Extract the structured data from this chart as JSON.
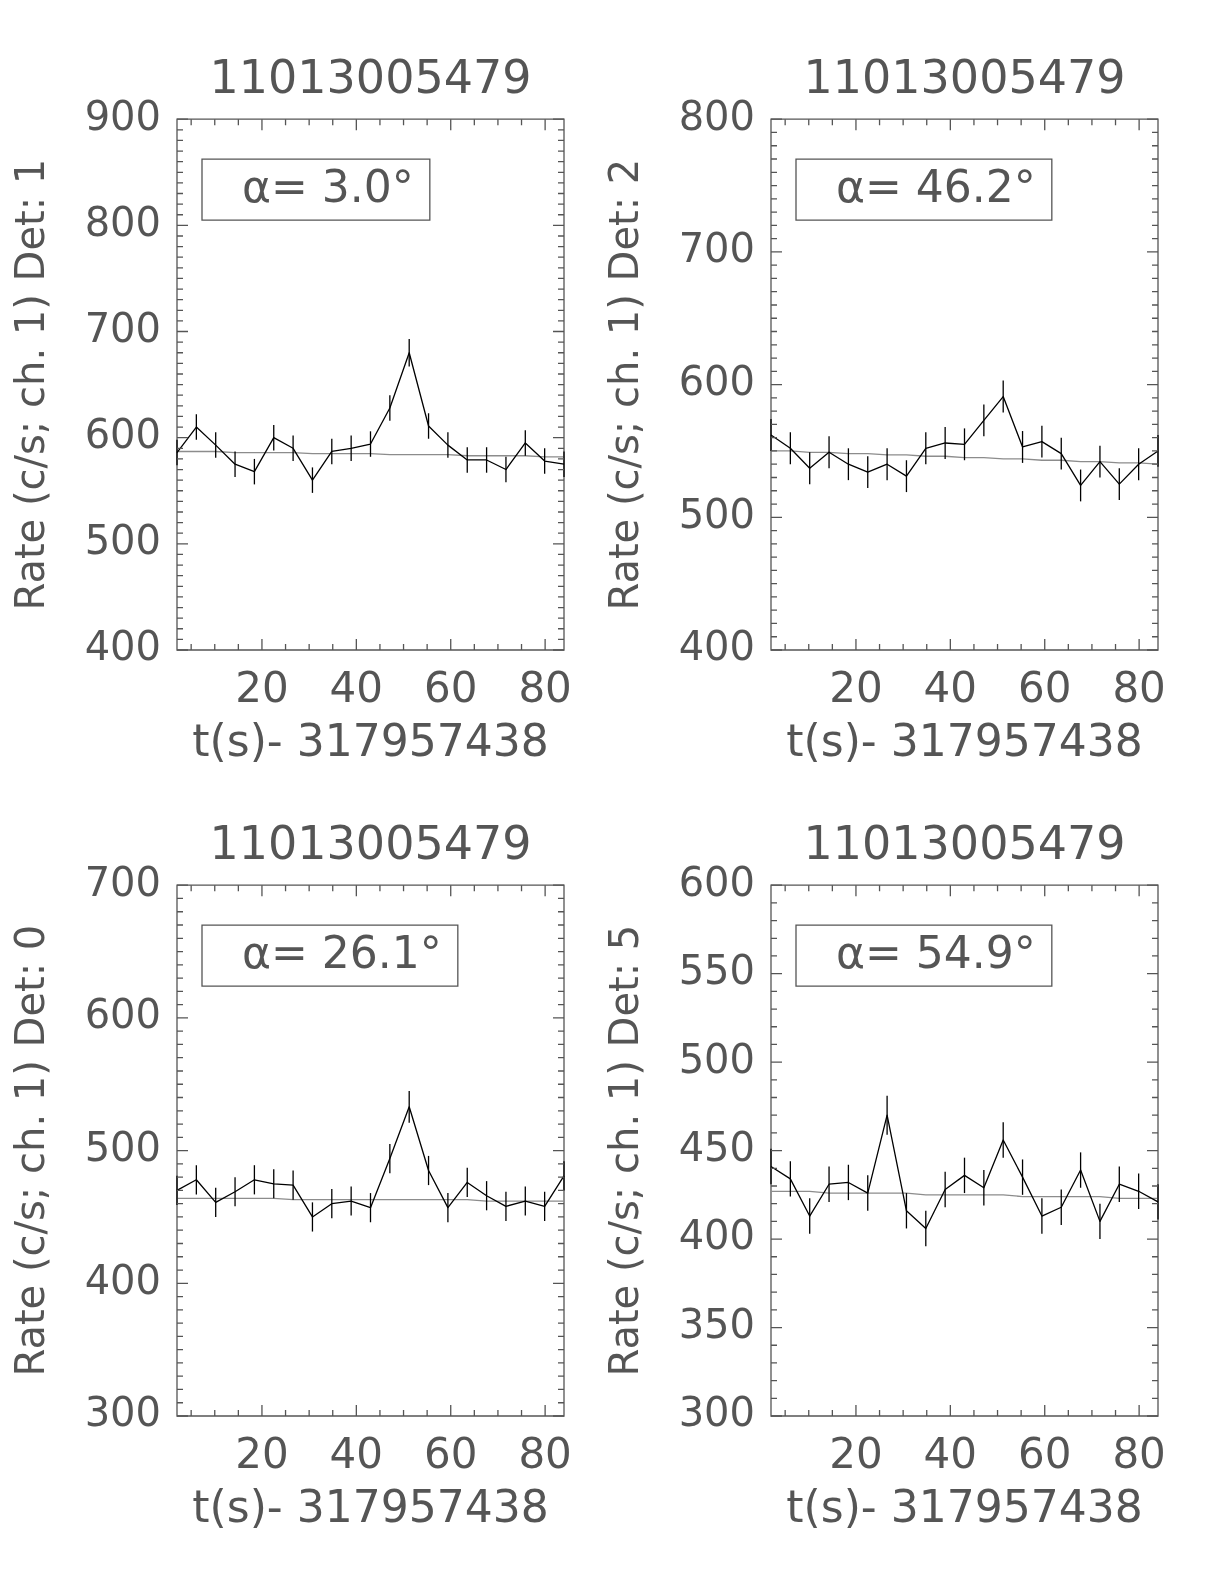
{
  "chart_data": [
    {
      "type": "line",
      "title": "11013005479",
      "xlabel": "t(s)- 317957438",
      "ylabel": "Rate (c/s; ch. 1) Det: 1",
      "annotations": [
        "α= 3.0°"
      ],
      "x": [
        2,
        6.1,
        10.2,
        14.3,
        18.4,
        22.5,
        26.6,
        30.7,
        34.8,
        38.9,
        43,
        47.1,
        51.2,
        55.3,
        59.4,
        63.5,
        67.6,
        71.7,
        75.8,
        79.9,
        84
      ],
      "xlim": [
        2,
        84
      ],
      "xticks": [
        {
          "value": 5,
          "label": null
        },
        {
          "value": 10,
          "label": null
        },
        {
          "value": 15,
          "label": null
        },
        20,
        {
          "value": 25,
          "label": null
        },
        {
          "value": 30,
          "label": null
        },
        {
          "value": 35,
          "label": null
        },
        40,
        {
          "value": 45,
          "label": null
        },
        {
          "value": 50,
          "label": null
        },
        {
          "value": 55,
          "label": null
        },
        60,
        {
          "value": 65,
          "label": null
        },
        {
          "value": 70,
          "label": null
        },
        {
          "value": 75,
          "label": null
        },
        80
      ],
      "ylim": [
        400,
        900
      ],
      "yticks": [
        400,
        {
          "value": 410,
          "label": null
        },
        {
          "value": 420,
          "label": null
        },
        {
          "value": 430,
          "label": null
        },
        {
          "value": 440,
          "label": null
        },
        {
          "value": 450,
          "label": null
        },
        {
          "value": 460,
          "label": null
        },
        {
          "value": 470,
          "label": null
        },
        {
          "value": 480,
          "label": null
        },
        {
          "value": 490,
          "label": null
        },
        500,
        {
          "value": 510,
          "label": null
        },
        {
          "value": 520,
          "label": null
        },
        {
          "value": 530,
          "label": null
        },
        {
          "value": 540,
          "label": null
        },
        {
          "value": 550,
          "label": null
        },
        {
          "value": 560,
          "label": null
        },
        {
          "value": 570,
          "label": null
        },
        {
          "value": 580,
          "label": null
        },
        {
          "value": 590,
          "label": null
        },
        600,
        {
          "value": 610,
          "label": null
        },
        {
          "value": 620,
          "label": null
        },
        {
          "value": 630,
          "label": null
        },
        {
          "value": 640,
          "label": null
        },
        {
          "value": 650,
          "label": null
        },
        {
          "value": 660,
          "label": null
        },
        {
          "value": 670,
          "label": null
        },
        {
          "value": 680,
          "label": null
        },
        {
          "value": 690,
          "label": null
        },
        700,
        {
          "value": 710,
          "label": null
        },
        {
          "value": 720,
          "label": null
        },
        {
          "value": 730,
          "label": null
        },
        {
          "value": 740,
          "label": null
        },
        {
          "value": 750,
          "label": null
        },
        {
          "value": 760,
          "label": null
        },
        {
          "value": 770,
          "label": null
        },
        {
          "value": 780,
          "label": null
        },
        {
          "value": 790,
          "label": null
        },
        800,
        {
          "value": 810,
          "label": null
        },
        {
          "value": 820,
          "label": null
        },
        {
          "value": 830,
          "label": null
        },
        {
          "value": 840,
          "label": null
        },
        {
          "value": 850,
          "label": null
        },
        {
          "value": 860,
          "label": null
        },
        {
          "value": 870,
          "label": null
        },
        {
          "value": 880,
          "label": null
        },
        {
          "value": 890,
          "label": null
        },
        900
      ],
      "series": [
        {
          "color": "#000000",
          "values": [
            586,
            610,
            593,
            575,
            568,
            600,
            590,
            560,
            587,
            590,
            594,
            628,
            680,
            611,
            593,
            579,
            579,
            570,
            595,
            578,
            575
          ],
          "errors": [
            12,
            12,
            12,
            12,
            12,
            12,
            12,
            12,
            12,
            12,
            12,
            12,
            13,
            12,
            12,
            12,
            12,
            12,
            12,
            12,
            12
          ]
        },
        {
          "color": "#8c8c8c",
          "values": [
            587,
            587,
            587,
            586,
            586,
            586,
            586,
            585,
            585,
            585,
            585,
            584,
            584,
            584,
            584,
            583,
            583,
            583,
            583,
            582,
            582
          ]
        }
      ],
      "marker": "none",
      "grid": false,
      "legend": false
    },
    {
      "type": "line",
      "title": "11013005479",
      "xlabel": "t(s)- 317957438",
      "ylabel": "Rate (c/s; ch. 1) Det: 2",
      "annotations": [
        "α= 46.2°"
      ],
      "x": [
        2,
        6.1,
        10.2,
        14.3,
        18.4,
        22.5,
        26.6,
        30.7,
        34.8,
        38.9,
        43,
        47.1,
        51.2,
        55.3,
        59.4,
        63.5,
        67.6,
        71.7,
        75.8,
        79.9,
        84
      ],
      "xlim": [
        2,
        84
      ],
      "xticks": [
        {
          "value": 5,
          "label": null
        },
        {
          "value": 10,
          "label": null
        },
        {
          "value": 15,
          "label": null
        },
        20,
        {
          "value": 25,
          "label": null
        },
        {
          "value": 30,
          "label": null
        },
        {
          "value": 35,
          "label": null
        },
        40,
        {
          "value": 45,
          "label": null
        },
        {
          "value": 50,
          "label": null
        },
        {
          "value": 55,
          "label": null
        },
        60,
        {
          "value": 65,
          "label": null
        },
        {
          "value": 70,
          "label": null
        },
        {
          "value": 75,
          "label": null
        },
        80
      ],
      "ylim": [
        400,
        800
      ],
      "yticks": [
        400,
        {
          "value": 410,
          "label": null
        },
        {
          "value": 420,
          "label": null
        },
        {
          "value": 430,
          "label": null
        },
        {
          "value": 440,
          "label": null
        },
        {
          "value": 450,
          "label": null
        },
        {
          "value": 460,
          "label": null
        },
        {
          "value": 470,
          "label": null
        },
        {
          "value": 480,
          "label": null
        },
        {
          "value": 490,
          "label": null
        },
        500,
        {
          "value": 510,
          "label": null
        },
        {
          "value": 520,
          "label": null
        },
        {
          "value": 530,
          "label": null
        },
        {
          "value": 540,
          "label": null
        },
        {
          "value": 550,
          "label": null
        },
        {
          "value": 560,
          "label": null
        },
        {
          "value": 570,
          "label": null
        },
        {
          "value": 580,
          "label": null
        },
        {
          "value": 590,
          "label": null
        },
        600,
        {
          "value": 610,
          "label": null
        },
        {
          "value": 620,
          "label": null
        },
        {
          "value": 630,
          "label": null
        },
        {
          "value": 640,
          "label": null
        },
        {
          "value": 650,
          "label": null
        },
        {
          "value": 660,
          "label": null
        },
        {
          "value": 670,
          "label": null
        },
        {
          "value": 680,
          "label": null
        },
        {
          "value": 690,
          "label": null
        },
        700,
        {
          "value": 710,
          "label": null
        },
        {
          "value": 720,
          "label": null
        },
        {
          "value": 730,
          "label": null
        },
        {
          "value": 740,
          "label": null
        },
        {
          "value": 750,
          "label": null
        },
        {
          "value": 760,
          "label": null
        },
        {
          "value": 770,
          "label": null
        },
        {
          "value": 780,
          "label": null
        },
        {
          "value": 790,
          "label": null
        },
        800
      ],
      "series": [
        {
          "color": "#000000",
          "values": [
            562,
            552,
            537,
            549,
            540,
            534,
            540,
            531,
            552,
            556,
            555,
            573,
            591,
            553,
            557,
            548,
            524,
            542,
            525,
            540,
            550
          ],
          "errors": [
            12,
            12,
            12,
            12,
            12,
            12,
            12,
            12,
            12,
            12,
            12,
            12,
            12,
            12,
            12,
            12,
            12,
            12,
            12,
            12,
            12
          ]
        },
        {
          "color": "#8c8c8c",
          "values": [
            550,
            550,
            549,
            549,
            548,
            548,
            547,
            547,
            546,
            546,
            545,
            545,
            544,
            544,
            543,
            543,
            542,
            542,
            541,
            541,
            540
          ]
        }
      ],
      "marker": "none",
      "grid": false,
      "legend": false
    },
    {
      "type": "line",
      "title": "11013005479",
      "xlabel": "t(s)- 317957438",
      "ylabel": "Rate (c/s; ch. 1) Det: 0",
      "annotations": [
        "α= 26.1°"
      ],
      "x": [
        2,
        6.1,
        10.2,
        14.3,
        18.4,
        22.5,
        26.6,
        30.7,
        34.8,
        38.9,
        43,
        47.1,
        51.2,
        55.3,
        59.4,
        63.5,
        67.6,
        71.7,
        75.8,
        79.9,
        84
      ],
      "xlim": [
        2,
        84
      ],
      "xticks": [
        {
          "value": 5,
          "label": null
        },
        {
          "value": 10,
          "label": null
        },
        {
          "value": 15,
          "label": null
        },
        20,
        {
          "value": 25,
          "label": null
        },
        {
          "value": 30,
          "label": null
        },
        {
          "value": 35,
          "label": null
        },
        40,
        {
          "value": 45,
          "label": null
        },
        {
          "value": 50,
          "label": null
        },
        {
          "value": 55,
          "label": null
        },
        60,
        {
          "value": 65,
          "label": null
        },
        {
          "value": 70,
          "label": null
        },
        {
          "value": 75,
          "label": null
        },
        80
      ],
      "ylim": [
        300,
        700
      ],
      "yticks": [
        300,
        {
          "value": 310,
          "label": null
        },
        {
          "value": 320,
          "label": null
        },
        {
          "value": 330,
          "label": null
        },
        {
          "value": 340,
          "label": null
        },
        {
          "value": 350,
          "label": null
        },
        {
          "value": 360,
          "label": null
        },
        {
          "value": 370,
          "label": null
        },
        {
          "value": 380,
          "label": null
        },
        {
          "value": 390,
          "label": null
        },
        400,
        {
          "value": 410,
          "label": null
        },
        {
          "value": 420,
          "label": null
        },
        {
          "value": 430,
          "label": null
        },
        {
          "value": 440,
          "label": null
        },
        {
          "value": 450,
          "label": null
        },
        {
          "value": 460,
          "label": null
        },
        {
          "value": 470,
          "label": null
        },
        {
          "value": 480,
          "label": null
        },
        {
          "value": 490,
          "label": null
        },
        500,
        {
          "value": 510,
          "label": null
        },
        {
          "value": 520,
          "label": null
        },
        {
          "value": 530,
          "label": null
        },
        {
          "value": 540,
          "label": null
        },
        {
          "value": 550,
          "label": null
        },
        {
          "value": 560,
          "label": null
        },
        {
          "value": 570,
          "label": null
        },
        {
          "value": 580,
          "label": null
        },
        {
          "value": 590,
          "label": null
        },
        600,
        {
          "value": 610,
          "label": null
        },
        {
          "value": 620,
          "label": null
        },
        {
          "value": 630,
          "label": null
        },
        {
          "value": 640,
          "label": null
        },
        {
          "value": 650,
          "label": null
        },
        {
          "value": 660,
          "label": null
        },
        {
          "value": 670,
          "label": null
        },
        {
          "value": 680,
          "label": null
        },
        {
          "value": 690,
          "label": null
        },
        700
      ],
      "series": [
        {
          "color": "#000000",
          "values": [
            470,
            478,
            461,
            469,
            478,
            475,
            474,
            450,
            460,
            462,
            457,
            494,
            533,
            485,
            457,
            476,
            466,
            458,
            462,
            458,
            481
          ],
          "errors": [
            11,
            11,
            11,
            11,
            11,
            11,
            11,
            11,
            11,
            11,
            11,
            11,
            12,
            11,
            11,
            11,
            11,
            11,
            11,
            11,
            11
          ]
        },
        {
          "color": "#8c8c8c",
          "values": [
            464,
            464,
            464,
            464,
            464,
            464,
            463,
            463,
            463,
            463,
            463,
            463,
            463,
            463,
            463,
            463,
            462,
            462,
            462,
            462,
            462
          ]
        }
      ],
      "marker": "none",
      "grid": false,
      "legend": false
    },
    {
      "type": "line",
      "title": "11013005479",
      "xlabel": "t(s)- 317957438",
      "ylabel": "Rate (c/s; ch. 1) Det: 5",
      "annotations": [
        "α= 54.9°"
      ],
      "x": [
        2,
        6.1,
        10.2,
        14.3,
        18.4,
        22.5,
        26.6,
        30.7,
        34.8,
        38.9,
        43,
        47.1,
        51.2,
        55.3,
        59.4,
        63.5,
        67.6,
        71.7,
        75.8,
        79.9,
        84
      ],
      "xlim": [
        2,
        84
      ],
      "xticks": [
        {
          "value": 5,
          "label": null
        },
        {
          "value": 10,
          "label": null
        },
        {
          "value": 15,
          "label": null
        },
        20,
        {
          "value": 25,
          "label": null
        },
        {
          "value": 30,
          "label": null
        },
        {
          "value": 35,
          "label": null
        },
        40,
        {
          "value": 45,
          "label": null
        },
        {
          "value": 50,
          "label": null
        },
        {
          "value": 55,
          "label": null
        },
        60,
        {
          "value": 65,
          "label": null
        },
        {
          "value": 70,
          "label": null
        },
        {
          "value": 75,
          "label": null
        },
        80
      ],
      "ylim": [
        300,
        600
      ],
      "yticks": [
        300,
        {
          "value": 310,
          "label": null
        },
        {
          "value": 320,
          "label": null
        },
        {
          "value": 330,
          "label": null
        },
        {
          "value": 340,
          "label": null
        },
        350,
        {
          "value": 360,
          "label": null
        },
        {
          "value": 370,
          "label": null
        },
        {
          "value": 380,
          "label": null
        },
        {
          "value": 390,
          "label": null
        },
        400,
        {
          "value": 410,
          "label": null
        },
        {
          "value": 420,
          "label": null
        },
        {
          "value": 430,
          "label": null
        },
        {
          "value": 440,
          "label": null
        },
        450,
        {
          "value": 460,
          "label": null
        },
        {
          "value": 470,
          "label": null
        },
        {
          "value": 480,
          "label": null
        },
        {
          "value": 490,
          "label": null
        },
        500,
        {
          "value": 510,
          "label": null
        },
        {
          "value": 520,
          "label": null
        },
        {
          "value": 530,
          "label": null
        },
        {
          "value": 540,
          "label": null
        },
        550,
        {
          "value": 560,
          "label": null
        },
        {
          "value": 570,
          "label": null
        },
        {
          "value": 580,
          "label": null
        },
        {
          "value": 590,
          "label": null
        },
        600
      ],
      "series": [
        {
          "color": "#000000",
          "values": [
            441,
            434,
            413,
            431,
            432,
            426,
            470,
            416,
            406,
            428,
            436,
            429,
            456,
            435,
            413,
            418,
            439,
            410,
            431,
            427,
            421
          ],
          "errors": [
            10,
            10,
            10,
            10,
            10,
            10,
            11,
            10,
            10,
            10,
            10,
            10,
            10,
            10,
            10,
            10,
            10,
            10,
            10,
            10,
            10
          ]
        },
        {
          "color": "#8c8c8c",
          "values": [
            427,
            427,
            427,
            426,
            426,
            426,
            426,
            426,
            425,
            425,
            425,
            425,
            425,
            424,
            424,
            424,
            424,
            424,
            423,
            423,
            423
          ]
        }
      ],
      "marker": "none",
      "grid": false,
      "legend": false
    }
  ]
}
